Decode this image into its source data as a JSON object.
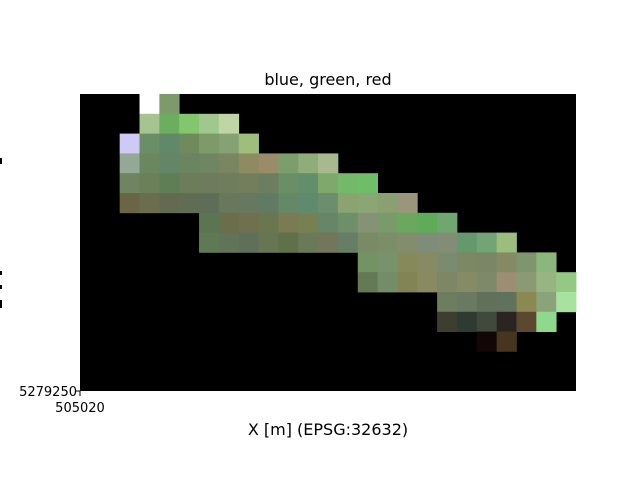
{
  "chart_data": {
    "type": "heatmap",
    "title": "blue, green, red",
    "xlabel": "X [m] (EPSG:32632)",
    "ylabel": "",
    "x_tick_labels": [
      "505020"
    ],
    "y_tick_labels": [
      "5279250"
    ],
    "background_color": "#000000",
    "grid": false,
    "legend": "none",
    "grid_cols": 25,
    "grid_rows": 15,
    "cells": [
      [
        3,
        0,
        "#ffffff"
      ],
      [
        4,
        0,
        "#7e9a6c"
      ],
      [
        3,
        1,
        "#a5c48f"
      ],
      [
        4,
        1,
        "#6aae5e"
      ],
      [
        5,
        1,
        "#84c66d"
      ],
      [
        6,
        1,
        "#a0c88e"
      ],
      [
        7,
        1,
        "#bfd6a4"
      ],
      [
        2,
        2,
        "#cfcaf5"
      ],
      [
        3,
        2,
        "#6c8e66"
      ],
      [
        4,
        2,
        "#62886a"
      ],
      [
        5,
        2,
        "#6f8a5d"
      ],
      [
        6,
        2,
        "#7f9a69"
      ],
      [
        7,
        2,
        "#86a275"
      ],
      [
        8,
        2,
        "#9fbe7c"
      ],
      [
        2,
        3,
        "#93a895"
      ],
      [
        3,
        3,
        "#6b8760"
      ],
      [
        4,
        3,
        "#648566"
      ],
      [
        5,
        3,
        "#6a8560"
      ],
      [
        6,
        3,
        "#708562"
      ],
      [
        7,
        3,
        "#788662"
      ],
      [
        8,
        3,
        "#8e8b63"
      ],
      [
        9,
        3,
        "#9a8c68"
      ],
      [
        10,
        3,
        "#7b9e6c"
      ],
      [
        11,
        3,
        "#8ead78"
      ],
      [
        12,
        3,
        "#a8b990"
      ],
      [
        2,
        4,
        "#6f8461"
      ],
      [
        3,
        4,
        "#6b7f58"
      ],
      [
        4,
        4,
        "#607e55"
      ],
      [
        5,
        4,
        "#6b7d5b"
      ],
      [
        6,
        4,
        "#6f7b5d"
      ],
      [
        7,
        4,
        "#6f7d5d"
      ],
      [
        8,
        4,
        "#737e5d"
      ],
      [
        9,
        4,
        "#6b7f60"
      ],
      [
        10,
        4,
        "#6a8f66"
      ],
      [
        11,
        4,
        "#628e6b"
      ],
      [
        12,
        4,
        "#7fa86d"
      ],
      [
        13,
        4,
        "#72b96a"
      ],
      [
        14,
        4,
        "#6dbd69"
      ],
      [
        2,
        5,
        "#6a6545"
      ],
      [
        3,
        5,
        "#6a6e4f"
      ],
      [
        4,
        5,
        "#636a4f"
      ],
      [
        5,
        5,
        "#606c53"
      ],
      [
        6,
        5,
        "#5e6d57"
      ],
      [
        7,
        5,
        "#69775b"
      ],
      [
        8,
        5,
        "#66785f"
      ],
      [
        9,
        5,
        "#617a64"
      ],
      [
        10,
        5,
        "#658868"
      ],
      [
        11,
        5,
        "#5f8a6d"
      ],
      [
        12,
        5,
        "#6c8e6c"
      ],
      [
        13,
        5,
        "#8aa36f"
      ],
      [
        14,
        5,
        "#8ba674"
      ],
      [
        15,
        5,
        "#8aa071"
      ],
      [
        16,
        5,
        "#9a957b"
      ],
      [
        6,
        6,
        "#5b7552"
      ],
      [
        7,
        6,
        "#6a6e4a"
      ],
      [
        8,
        6,
        "#6f704e"
      ],
      [
        9,
        6,
        "#6a7650"
      ],
      [
        10,
        6,
        "#7a7b52"
      ],
      [
        11,
        6,
        "#778053"
      ],
      [
        12,
        6,
        "#678567"
      ],
      [
        13,
        6,
        "#6f8e6a"
      ],
      [
        14,
        6,
        "#869275"
      ],
      [
        15,
        6,
        "#799a6a"
      ],
      [
        16,
        6,
        "#6aa85e"
      ],
      [
        17,
        6,
        "#5fac58"
      ],
      [
        18,
        6,
        "#70a670"
      ],
      [
        6,
        7,
        "#5f7955"
      ],
      [
        7,
        7,
        "#627458"
      ],
      [
        8,
        7,
        "#5f705a"
      ],
      [
        9,
        7,
        "#687553"
      ],
      [
        10,
        7,
        "#5f7149"
      ],
      [
        11,
        7,
        "#6a7a58"
      ],
      [
        12,
        7,
        "#74765c"
      ],
      [
        13,
        7,
        "#667d66"
      ],
      [
        14,
        7,
        "#798b65"
      ],
      [
        15,
        7,
        "#7c8e67"
      ],
      [
        16,
        7,
        "#838d6d"
      ],
      [
        17,
        7,
        "#7e8d7a"
      ],
      [
        18,
        7,
        "#838d76"
      ],
      [
        19,
        7,
        "#65986c"
      ],
      [
        20,
        7,
        "#73a475"
      ],
      [
        21,
        7,
        "#9cbd7b"
      ],
      [
        14,
        8,
        "#739364"
      ],
      [
        15,
        8,
        "#78926c"
      ],
      [
        16,
        8,
        "#868a5b"
      ],
      [
        17,
        8,
        "#888a64"
      ],
      [
        18,
        8,
        "#7b8b6f"
      ],
      [
        19,
        8,
        "#7c8763"
      ],
      [
        20,
        8,
        "#7a8767"
      ],
      [
        21,
        8,
        "#858a65"
      ],
      [
        22,
        8,
        "#7e966e"
      ],
      [
        23,
        8,
        "#8cb77c"
      ],
      [
        14,
        9,
        "#647a55"
      ],
      [
        15,
        9,
        "#738d68"
      ],
      [
        16,
        9,
        "#838456"
      ],
      [
        17,
        9,
        "#8a8a62"
      ],
      [
        18,
        9,
        "#7f8665"
      ],
      [
        19,
        9,
        "#868b66"
      ],
      [
        20,
        9,
        "#7d8a69"
      ],
      [
        21,
        9,
        "#9d8d73"
      ],
      [
        22,
        9,
        "#8b9a75"
      ],
      [
        23,
        9,
        "#97b482"
      ],
      [
        24,
        9,
        "#93c982"
      ],
      [
        18,
        10,
        "#6c7d60"
      ],
      [
        19,
        10,
        "#6a7a62"
      ],
      [
        20,
        10,
        "#617059"
      ],
      [
        21,
        10,
        "#60715c"
      ],
      [
        22,
        10,
        "#8a8951"
      ],
      [
        23,
        10,
        "#8aa37a"
      ],
      [
        24,
        10,
        "#a8e2a0"
      ],
      [
        18,
        11,
        "#3d3d30"
      ],
      [
        19,
        11,
        "#2f3b32"
      ],
      [
        20,
        11,
        "#3f4a3d"
      ],
      [
        21,
        11,
        "#2c2421"
      ],
      [
        22,
        11,
        "#5c4830"
      ],
      [
        23,
        11,
        "#8ed98b"
      ],
      [
        20,
        12,
        "#120606"
      ],
      [
        21,
        12,
        "#473520"
      ]
    ]
  }
}
